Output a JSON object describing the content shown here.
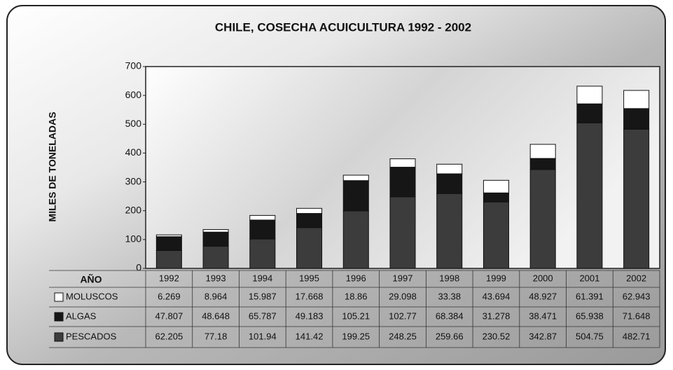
{
  "chart_data": {
    "type": "stacked_bar",
    "title": "CHILE, COSECHA ACUICULTURA 1992 - 2002",
    "y_label": "MILES DE TONELADAS",
    "table_header": "AÑO",
    "categories": [
      "1992",
      "1993",
      "1994",
      "1995",
      "1996",
      "1997",
      "1998",
      "1999",
      "2000",
      "2001",
      "2002"
    ],
    "series": [
      {
        "name": "MOLUSCOS",
        "color": "#ffffff",
        "values": [
          6.269,
          8.964,
          15.987,
          17.668,
          18.86,
          29.098,
          33.38,
          43.694,
          48.927,
          61.391,
          62.943
        ]
      },
      {
        "name": "ALGAS",
        "color": "#161616",
        "values": [
          47.807,
          48.648,
          65.787,
          49.183,
          105.21,
          102.77,
          68.384,
          31.278,
          38.471,
          65.938,
          71.648
        ]
      },
      {
        "name": "PESCADOS",
        "color": "#3c3c3c",
        "values": [
          62.205,
          77.18,
          101.94,
          141.42,
          199.25,
          248.25,
          259.66,
          230.52,
          342.87,
          504.75,
          482.71
        ]
      }
    ],
    "ylim": [
      0,
      700
    ],
    "yticks": [
      0,
      100,
      200,
      300,
      400,
      500,
      600,
      700
    ]
  }
}
